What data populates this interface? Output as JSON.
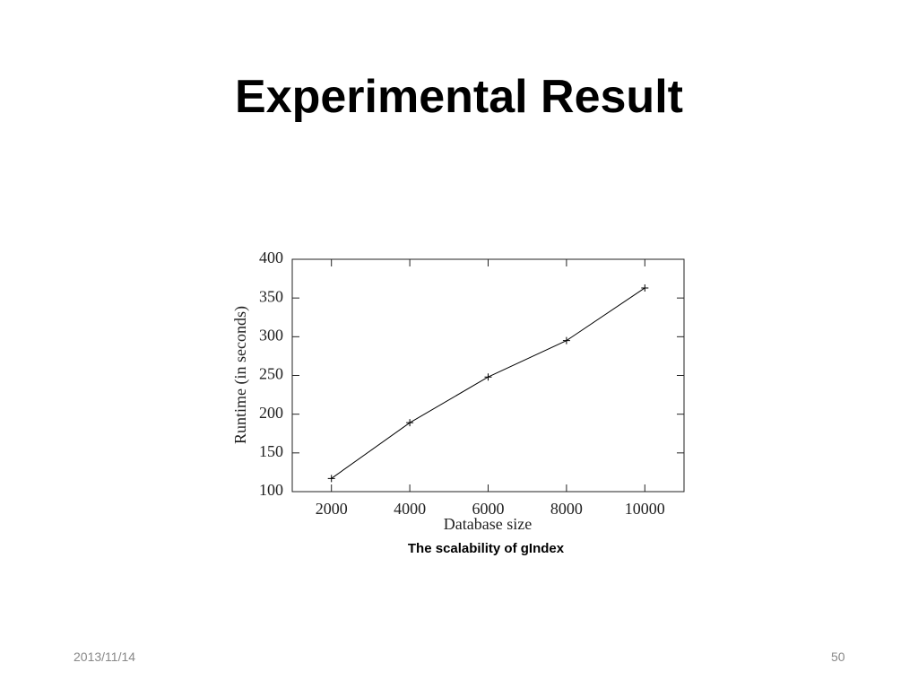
{
  "slide": {
    "title": "Experimental Result",
    "date": "2013/11/14",
    "page": "50"
  },
  "chart_data": {
    "type": "line",
    "x": [
      2000,
      4000,
      6000,
      8000,
      10000
    ],
    "values": [
      117,
      189,
      248,
      295,
      363
    ],
    "color": "#000000",
    "xlabel": "Database size",
    "ylabel": "Runtime (in seconds)",
    "caption": "The scalability of gIndex",
    "xlim": [
      1000,
      11000
    ],
    "xticks": [
      2000,
      4000,
      6000,
      8000,
      10000
    ],
    "ylim": [
      100,
      400
    ],
    "yticks": [
      100,
      150,
      200,
      250,
      300,
      350,
      400
    ],
    "grid": false
  }
}
